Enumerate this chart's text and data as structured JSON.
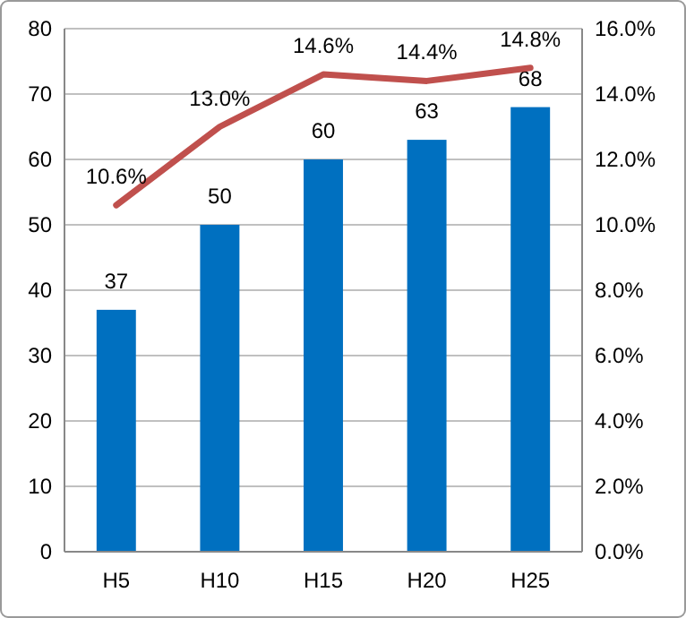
{
  "chart_data": {
    "type": "bar",
    "categories": [
      "H5",
      "H10",
      "H15",
      "H20",
      "H25"
    ],
    "series": [
      {
        "color": "#0070c0",
        "values": [
          37,
          50,
          60,
          63,
          68
        ],
        "value_labels": [
          "37",
          "50",
          "60",
          "63",
          "68"
        ]
      },
      {
        "type": "line",
        "axis": "y2",
        "color": "#c0504d",
        "values": [
          10.6,
          13.0,
          14.6,
          14.4,
          14.8
        ],
        "value_labels": [
          "10.6%",
          "13.0%",
          "14.6%",
          "14.4%",
          "14.8%"
        ]
      }
    ],
    "ylim": [
      0,
      80
    ],
    "yticks": [
      0,
      10,
      20,
      30,
      40,
      50,
      60,
      70,
      80
    ],
    "y2lim": [
      0,
      16
    ],
    "y2ticks": [
      {
        "value": 0,
        "label": "0.0%"
      },
      {
        "value": 2,
        "label": "2.0%"
      },
      {
        "value": 4,
        "label": "4.0%"
      },
      {
        "value": 6,
        "label": "6.0%"
      },
      {
        "value": 8,
        "label": "8.0%"
      },
      {
        "value": 10,
        "label": "10.0%"
      },
      {
        "value": 12,
        "label": "12.0%"
      },
      {
        "value": 14,
        "label": "14.0%"
      },
      {
        "value": 16,
        "label": "16.0%"
      }
    ],
    "grid": "y",
    "marker": "none",
    "line_style": "solid"
  }
}
